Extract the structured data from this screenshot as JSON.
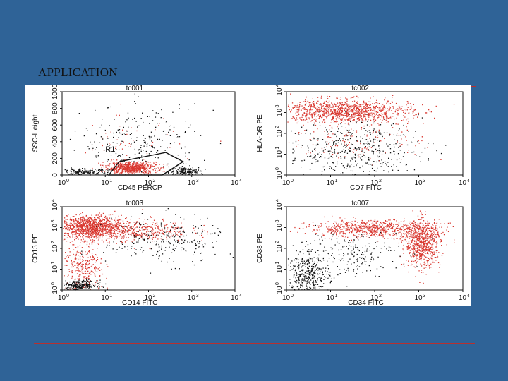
{
  "slide": {
    "title": "APPLICATION",
    "accent_color": "#b8302f",
    "background_color": "#2f6397"
  },
  "figure": {
    "point_colors": {
      "gated": "#d9372f",
      "ungated": "#111111"
    },
    "panels": [
      {
        "id": "tc001",
        "title": "tc001",
        "xlabel": "CD45 PERCP",
        "ylabel": "SSC-Height",
        "x_scale": "log",
        "y_scale": "linear",
        "x_ticks": [
          "10",
          "10",
          "10",
          "10",
          "10"
        ],
        "x_tick_exponents": [
          "0",
          "1",
          "2",
          "3",
          "4"
        ],
        "y_ticks": [
          "0",
          "200",
          "400",
          "600",
          "800",
          "1000"
        ],
        "y_tick_exponents": [
          "",
          "",
          "",
          "",
          "",
          ""
        ],
        "gate_label": "R1"
      },
      {
        "id": "tc002",
        "title": "tc002",
        "xlabel": "CD7 FITC",
        "ylabel": "HLA-DR PE",
        "x_scale": "log",
        "y_scale": "log",
        "x_ticks": [
          "10",
          "10",
          "10",
          "10",
          "10"
        ],
        "x_tick_exponents": [
          "0",
          "1",
          "2",
          "3",
          "4"
        ],
        "y_ticks": [
          "10",
          "10",
          "10",
          "10",
          "10"
        ],
        "y_tick_exponents": [
          "0",
          "1",
          "2",
          "3",
          "4"
        ]
      },
      {
        "id": "tc003",
        "title": "tc003",
        "xlabel": "CD14 FITC",
        "ylabel": "CD13 PE",
        "x_scale": "log",
        "y_scale": "log",
        "x_ticks": [
          "10",
          "10",
          "10",
          "10",
          "10"
        ],
        "x_tick_exponents": [
          "0",
          "1",
          "2",
          "3",
          "4"
        ],
        "y_ticks": [
          "10",
          "10",
          "10",
          "10",
          "10"
        ],
        "y_tick_exponents": [
          "0",
          "1",
          "2",
          "3",
          "4"
        ]
      },
      {
        "id": "tc007",
        "title": "tc007",
        "xlabel": "CD34 FITC",
        "ylabel": "CD38 PE",
        "x_scale": "log",
        "y_scale": "log",
        "x_ticks": [
          "10",
          "10",
          "10",
          "10",
          "10"
        ],
        "x_tick_exponents": [
          "0",
          "1",
          "2",
          "3",
          "4"
        ],
        "y_ticks": [
          "10",
          "10",
          "10",
          "10",
          "10"
        ],
        "y_tick_exponents": [
          "0",
          "1",
          "2",
          "3",
          "4"
        ]
      }
    ]
  }
}
